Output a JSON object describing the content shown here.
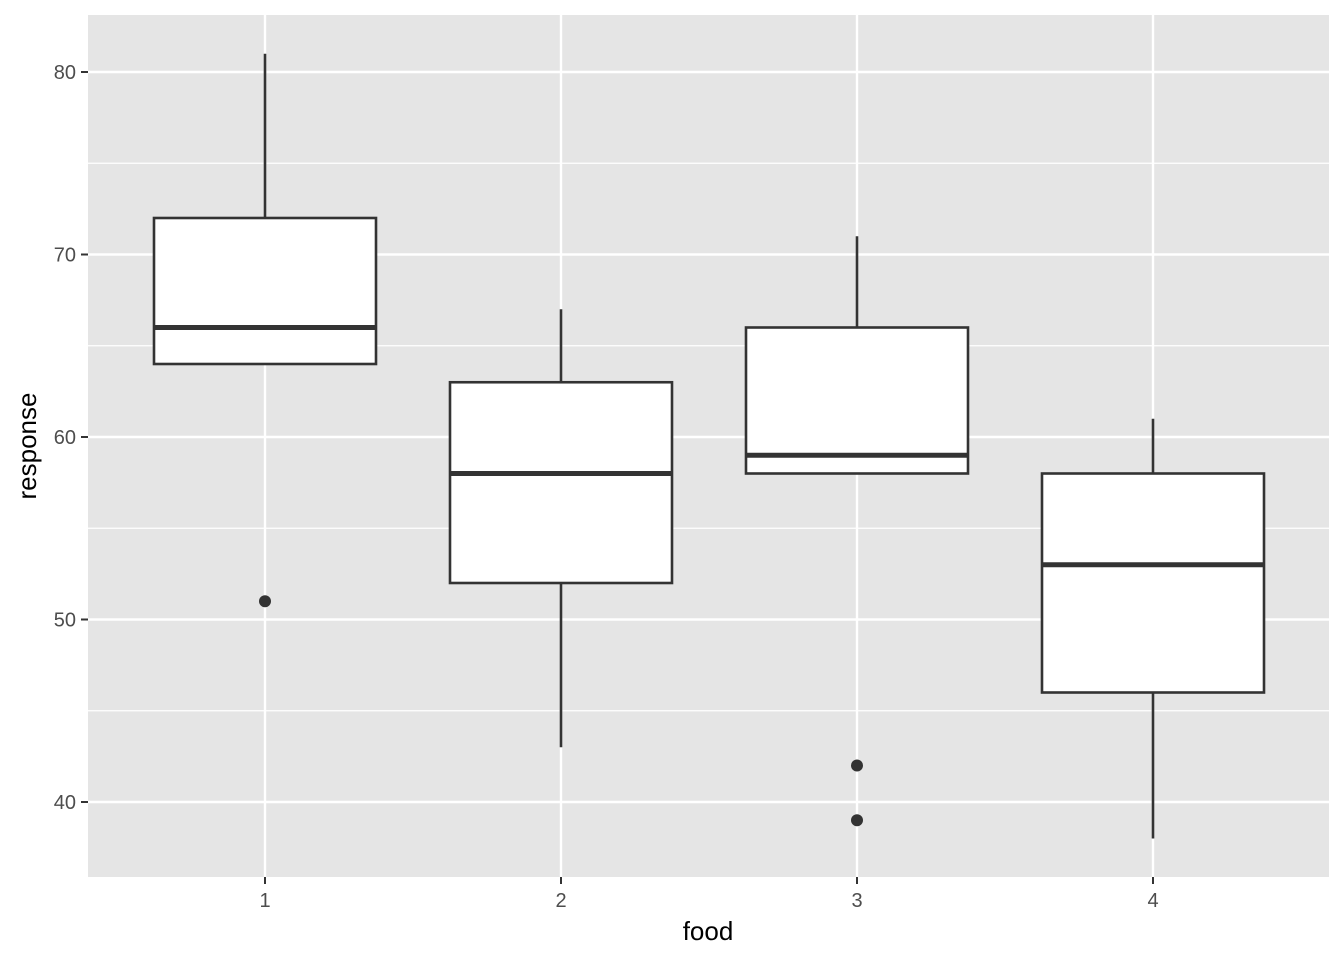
{
  "chart_data": {
    "type": "boxplot",
    "title": "",
    "xlabel": "food",
    "ylabel": "response",
    "categories": [
      "1",
      "2",
      "3",
      "4"
    ],
    "ylim": [
      35,
      83
    ],
    "y_major_ticks": [
      40,
      50,
      60,
      70,
      80
    ],
    "y_tick_labels": [
      "40",
      "50",
      "60",
      "70",
      "80"
    ],
    "y_minor_ticks": [
      45,
      55,
      65,
      75
    ],
    "grid": true,
    "legend": "none",
    "boxes": [
      {
        "category": "1",
        "whisker_low": 64,
        "q1": 64,
        "median": 66,
        "q3": 72,
        "whisker_high": 81,
        "outliers": [
          51
        ]
      },
      {
        "category": "2",
        "whisker_low": 43,
        "q1": 52,
        "median": 58,
        "q3": 63,
        "whisker_high": 67,
        "outliers": []
      },
      {
        "category": "3",
        "whisker_low": 58,
        "q1": 58,
        "median": 59,
        "q3": 66,
        "whisker_high": 71,
        "outliers": [
          42,
          39
        ]
      },
      {
        "category": "4",
        "whisker_low": 38,
        "q1": 46,
        "median": 53,
        "q3": 58,
        "whisker_high": 61,
        "outliers": []
      }
    ],
    "colors": {
      "panel_background": "#e5e5e5",
      "grid": "#ffffff",
      "box_fill": "#ffffff",
      "box_line": "#333333",
      "tick_label": "#4d4d4d",
      "axis_title": "#000000"
    }
  }
}
